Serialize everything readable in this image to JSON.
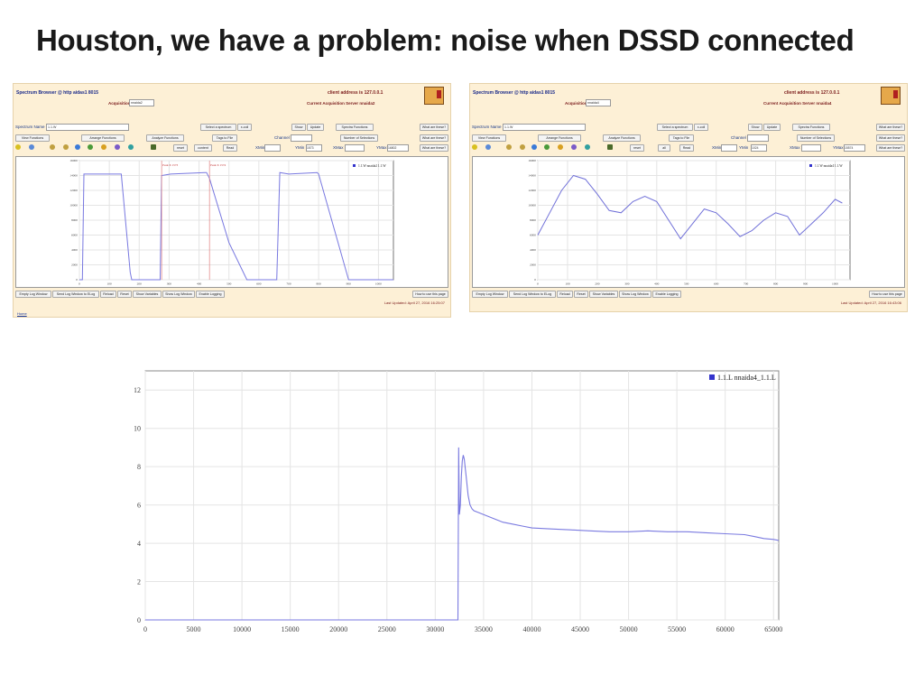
{
  "slide_title": "Houston, we have a problem: noise when DSSD connected",
  "colors": {
    "accent": "#3333cc",
    "line": "#7777dd",
    "panel_bg": "#fdf0d6",
    "title_blue": "#1a2a8a",
    "maroon": "#7a1a1a"
  },
  "left_panel": {
    "header_title": "Spectrum Browser @ http aidas1 8015",
    "client_address": "client address is 127.0.0.1",
    "acq_server_label": "Acquisition Server",
    "acq_server_value": "nnaida2",
    "current_acq_server": "Current Acquisition Server nnaida2",
    "spectrum_name_label": "Spectrum Name",
    "spectrum_name_value": "1.1.W",
    "select_spectrum_btn": "Select a spectrum",
    "xcoll_btn": "x-coll",
    "show_btn": "Show",
    "update_btn": "Update",
    "spectra_functions_btn": "Spectra Functions",
    "what_btn_1": "What are these?",
    "view_functions_btn": "View Functions",
    "arrange_functions_btn": "Arrange Functions",
    "analyze_functions_btn": "Analyze Functions",
    "tags_btn": "Tags to File",
    "channel_label": "Channel",
    "number_selections_btn": "Number of Selections",
    "what_btn_2": "What are these?",
    "reset_btn": "reset",
    "content_btn": "content",
    "read_btn": "Read",
    "xmin_label": "XMin",
    "ymin_label": "YMin",
    "xmax_label": "XMax",
    "ymax_label": "YMax",
    "xmax_value": "1573",
    "ymax_value": "16802",
    "what_btn_3": "What are these?",
    "legend": "1.1.W nnaida2 1.1.W",
    "annot_1": "Peak X 1573",
    "annot_2": "Peak X 1574",
    "footer_buttons": [
      "Empty Log Window",
      "Send Log Window to ELog",
      "Reload",
      "Reset",
      "Show Variables",
      "Show Log Window",
      "Enable Logging"
    ],
    "how_to_use": "How to use this page",
    "last_updated": "Last Updated: April 27, 2016 16:25:07",
    "home_link": "Home"
  },
  "right_panel": {
    "header_title": "Spectrum Browser @ http aidas1 8015",
    "client_address": "client address is 127.0.0.1",
    "acq_server_label": "Acquisition Server",
    "acq_server_value": "nnaida4",
    "current_acq_server": "Current Acquisition Server nnaida4",
    "spectrum_name_label": "Spectrum Name",
    "spectrum_name_value": "1.1.W",
    "select_spectrum_btn": "Select a spectrum",
    "xcoll_btn": "x-coll",
    "show_btn": "Show",
    "update_btn": "Update",
    "spectra_functions_btn": "Spectra Functions",
    "what_btn_1": "What are these?",
    "view_functions_btn": "View Functions",
    "arrange_functions_btn": "Arrange Functions",
    "analyze_functions_btn": "Analyze Functions",
    "tags_btn": "Tags to File",
    "channel_label": "Channel",
    "number_selections_btn": "Number of Selections",
    "what_btn_2": "What are these?",
    "reset_btn": "reset",
    "content_btn": "all",
    "read_btn": "Read",
    "xmin_label": "XMin",
    "ymin_label": "YMin",
    "xmax_label": "XMax",
    "ymax_label": "YMax",
    "xmax_value": "1024",
    "ymax_value": "15574",
    "what_btn_3": "What are these?",
    "legend": "1.1.W nnaida4 1.1.W",
    "footer_buttons": [
      "Empty Log Window",
      "Send Log Window to ELog",
      "Reload",
      "Reset",
      "Show Variables",
      "Show Log Window",
      "Enable Logging"
    ],
    "how_to_use": "How to use this page",
    "last_updated": "Last Updated: April 27, 2016 16:43:06"
  },
  "chart_data": [
    {
      "type": "line",
      "title": "",
      "series": [
        {
          "name": "1.1.W nnaida2 1.1.W"
        }
      ],
      "xlim": [
        0,
        1050
      ],
      "ylim": [
        0,
        16000
      ],
      "xticks": [
        0,
        100,
        200,
        300,
        400,
        500,
        600,
        700,
        800,
        900,
        1000
      ],
      "yticks": [
        0,
        2000,
        4000,
        6000,
        8000,
        10000,
        12000,
        14000,
        16000
      ],
      "x": [
        0,
        10,
        15,
        140,
        170,
        175,
        180,
        270,
        275,
        305,
        420,
        425,
        435,
        500,
        560,
        565,
        580,
        660,
        670,
        700,
        795,
        800,
        900,
        960,
        1000,
        1050
      ],
      "y": [
        0,
        0,
        14200,
        14200,
        1000,
        0,
        0,
        0,
        14000,
        14200,
        14400,
        14400,
        13600,
        5000,
        0,
        0,
        0,
        0,
        14400,
        14200,
        14400,
        14200,
        0,
        0,
        0,
        0
      ],
      "grid": true,
      "legend_position": "top-right"
    },
    {
      "type": "line",
      "title": "",
      "series": [
        {
          "name": "1.1.W nnaida4 1.1.W"
        }
      ],
      "xlim": [
        0,
        1050
      ],
      "ylim": [
        0,
        16000
      ],
      "xticks": [
        0,
        100,
        200,
        300,
        400,
        500,
        600,
        700,
        800,
        900,
        1000
      ],
      "yticks": [
        0,
        2000,
        4000,
        6000,
        8000,
        10000,
        12000,
        14000,
        16000
      ],
      "x": [
        0,
        40,
        80,
        120,
        160,
        200,
        240,
        280,
        320,
        360,
        400,
        440,
        480,
        520,
        560,
        600,
        640,
        680,
        720,
        760,
        800,
        840,
        880,
        920,
        960,
        1000,
        1024
      ],
      "y": [
        6000,
        9000,
        12000,
        14000,
        13500,
        11500,
        9300,
        9000,
        10500,
        11200,
        10500,
        8000,
        5500,
        7500,
        9500,
        9000,
        7500,
        5800,
        6600,
        8000,
        9000,
        8500,
        6000,
        7500,
        9000,
        10800,
        10300
      ],
      "grid": true,
      "legend_position": "top-right"
    },
    {
      "type": "line",
      "title": "",
      "series": [
        {
          "name": "1.1.L nnaida4_1.1.L"
        }
      ],
      "xlim": [
        0,
        65536
      ],
      "ylim": [
        0,
        13
      ],
      "xticks": [
        0,
        5000,
        10000,
        15000,
        20000,
        25000,
        30000,
        35000,
        40000,
        45000,
        50000,
        55000,
        60000,
        65000
      ],
      "yticks": [
        0,
        2,
        4,
        6,
        8,
        10,
        12
      ],
      "x": [
        0,
        32000,
        32350,
        32420,
        32500,
        32600,
        32700,
        32800,
        32900,
        33000,
        33200,
        33400,
        33600,
        33800,
        34000,
        34500,
        35000,
        36000,
        37000,
        38000,
        39000,
        40000,
        42000,
        44000,
        46000,
        48000,
        50000,
        52000,
        54000,
        56000,
        58000,
        60000,
        62000,
        63000,
        64000,
        65000,
        65536
      ],
      "y": [
        0,
        0,
        0,
        9.0,
        5.5,
        6.0,
        7.5,
        8.3,
        8.6,
        8.4,
        7.5,
        6.5,
        6.0,
        5.8,
        5.7,
        5.6,
        5.5,
        5.3,
        5.1,
        5.0,
        4.9,
        4.8,
        4.75,
        4.7,
        4.65,
        4.6,
        4.6,
        4.65,
        4.6,
        4.6,
        4.55,
        4.5,
        4.45,
        4.35,
        4.25,
        4.2,
        4.15
      ],
      "grid": true,
      "legend_position": "top-right"
    }
  ]
}
